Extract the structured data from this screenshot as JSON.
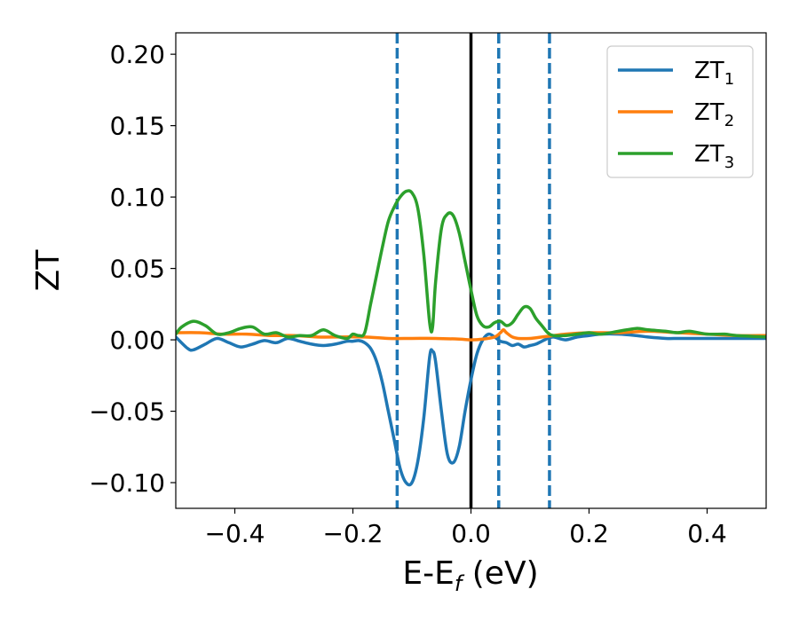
{
  "chart_data": {
    "type": "line",
    "xlabel": "E-E_f (eV)",
    "ylabel": "ZT",
    "xlim": [
      -0.5,
      0.5
    ],
    "ylim": [
      -0.118,
      0.215
    ],
    "x_ticks": [
      -0.4,
      -0.2,
      0.0,
      0.2,
      0.4
    ],
    "x_tick_labels": [
      "−0.4",
      "−0.2",
      "0.0",
      "0.2",
      "0.4"
    ],
    "y_ticks": [
      -0.1,
      -0.05,
      0.0,
      0.05,
      0.1,
      0.15,
      0.2
    ],
    "y_tick_labels": [
      "−0.10",
      "−0.05",
      "0.00",
      "0.05",
      "0.10",
      "0.15",
      "0.20"
    ],
    "grid": false,
    "legend_position": "top-right",
    "vertical_lines": [
      {
        "x": -0.125,
        "style": "dashed",
        "color": "#1f77b4"
      },
      {
        "x": 0.0,
        "style": "solid",
        "color": "#000000"
      },
      {
        "x": 0.047,
        "style": "dashed",
        "color": "#1f77b4"
      },
      {
        "x": 0.133,
        "style": "dashed",
        "color": "#1f77b4"
      }
    ],
    "series": [
      {
        "name": "ZT1",
        "label_main": "ZT",
        "label_sub": "1",
        "color": "#1f77b4",
        "x": [
          -0.5,
          -0.48,
          -0.47,
          -0.45,
          -0.43,
          -0.41,
          -0.39,
          -0.37,
          -0.35,
          -0.33,
          -0.31,
          -0.29,
          -0.27,
          -0.25,
          -0.23,
          -0.21,
          -0.2,
          -0.19,
          -0.18,
          -0.17,
          -0.16,
          -0.15,
          -0.14,
          -0.13,
          -0.12,
          -0.11,
          -0.1,
          -0.09,
          -0.08,
          -0.07,
          -0.065,
          -0.06,
          -0.05,
          -0.04,
          -0.03,
          -0.02,
          -0.01,
          0.0,
          0.01,
          0.02,
          0.03,
          0.04,
          0.05,
          0.06,
          0.07,
          0.08,
          0.09,
          0.1,
          0.11,
          0.12,
          0.13,
          0.14,
          0.16,
          0.18,
          0.2,
          0.22,
          0.25,
          0.28,
          0.3,
          0.33,
          0.35,
          0.37,
          0.4,
          0.43,
          0.45,
          0.5
        ],
        "y": [
          0.002,
          -0.006,
          -0.007,
          -0.003,
          0.001,
          -0.002,
          -0.005,
          -0.003,
          -0.0005,
          -0.002,
          0.001,
          -0.001,
          -0.003,
          -0.004,
          -0.003,
          -0.001,
          -0.001,
          -0.0005,
          -0.002,
          -0.006,
          -0.015,
          -0.03,
          -0.05,
          -0.07,
          -0.09,
          -0.1,
          -0.1,
          -0.085,
          -0.055,
          -0.012,
          -0.008,
          -0.015,
          -0.05,
          -0.08,
          -0.086,
          -0.075,
          -0.05,
          -0.028,
          -0.01,
          0.0,
          0.004,
          0.002,
          -0.001,
          -0.002,
          -0.004,
          -0.003,
          -0.005,
          -0.004,
          -0.003,
          -0.001,
          0.001,
          0.002,
          0.0,
          0.002,
          0.003,
          0.004,
          0.004,
          0.003,
          0.002,
          0.001,
          0.001,
          0.001,
          0.001,
          0.001,
          0.001,
          0.001
        ]
      },
      {
        "name": "ZT2",
        "label_main": "ZT",
        "label_sub": "2",
        "color": "#ff7f0e",
        "x": [
          -0.5,
          -0.46,
          -0.42,
          -0.38,
          -0.34,
          -0.3,
          -0.26,
          -0.22,
          -0.18,
          -0.14,
          -0.1,
          -0.06,
          -0.02,
          0.0,
          0.02,
          0.04,
          0.05,
          0.055,
          0.06,
          0.07,
          0.08,
          0.1,
          0.12,
          0.14,
          0.16,
          0.2,
          0.25,
          0.3,
          0.35,
          0.4,
          0.45,
          0.5
        ],
        "y": [
          0.005,
          0.005,
          0.004,
          0.004,
          0.003,
          0.003,
          0.002,
          0.002,
          0.002,
          0.001,
          0.001,
          0.001,
          0.0005,
          0.0,
          0.0005,
          0.002,
          0.005,
          0.007,
          0.005,
          0.002,
          0.001,
          0.001,
          0.002,
          0.003,
          0.004,
          0.005,
          0.005,
          0.006,
          0.005,
          0.004,
          0.003,
          0.003
        ]
      },
      {
        "name": "ZT3",
        "label_main": "ZT",
        "label_sub": "3",
        "color": "#2ca02c",
        "x": [
          -0.5,
          -0.49,
          -0.47,
          -0.45,
          -0.43,
          -0.41,
          -0.39,
          -0.37,
          -0.35,
          -0.33,
          -0.31,
          -0.29,
          -0.27,
          -0.25,
          -0.23,
          -0.21,
          -0.2,
          -0.19,
          -0.18,
          -0.17,
          -0.16,
          -0.15,
          -0.14,
          -0.13,
          -0.12,
          -0.11,
          -0.1,
          -0.09,
          -0.08,
          -0.07,
          -0.065,
          -0.06,
          -0.05,
          -0.04,
          -0.03,
          -0.02,
          -0.01,
          0.0,
          0.01,
          0.02,
          0.03,
          0.04,
          0.05,
          0.06,
          0.07,
          0.08,
          0.09,
          0.1,
          0.11,
          0.12,
          0.13,
          0.14,
          0.16,
          0.18,
          0.2,
          0.22,
          0.25,
          0.28,
          0.3,
          0.33,
          0.35,
          0.37,
          0.4,
          0.43,
          0.45,
          0.5
        ],
        "y": [
          0.004,
          0.009,
          0.013,
          0.01,
          0.004,
          0.005,
          0.008,
          0.009,
          0.004,
          0.005,
          0.002,
          0.003,
          0.003,
          0.007,
          0.003,
          0.001,
          0.004,
          0.003,
          0.005,
          0.025,
          0.045,
          0.065,
          0.083,
          0.093,
          0.1,
          0.104,
          0.103,
          0.092,
          0.06,
          0.012,
          0.009,
          0.04,
          0.078,
          0.088,
          0.087,
          0.075,
          0.055,
          0.035,
          0.017,
          0.01,
          0.009,
          0.012,
          0.013,
          0.01,
          0.012,
          0.018,
          0.023,
          0.022,
          0.015,
          0.01,
          0.005,
          0.003,
          0.003,
          0.004,
          0.005,
          0.004,
          0.006,
          0.008,
          0.007,
          0.006,
          0.005,
          0.006,
          0.004,
          0.004,
          0.003,
          0.002
        ]
      }
    ]
  }
}
